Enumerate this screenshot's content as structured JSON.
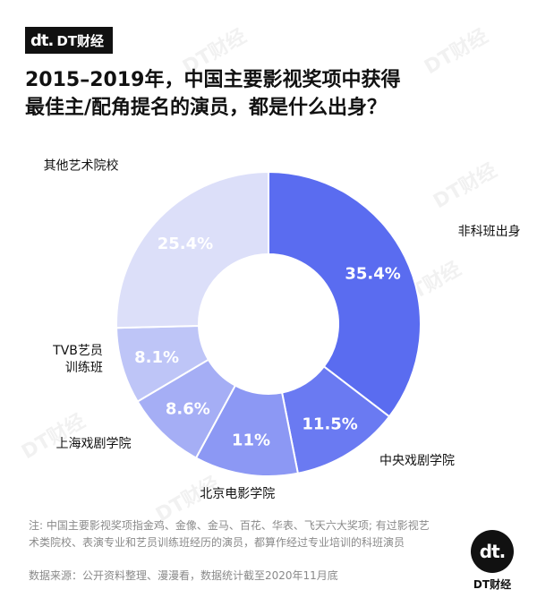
{
  "brand": {
    "mark": "dt.",
    "name": "DT财经"
  },
  "title": {
    "line1": "2015–2019年，中国主要影视奖项中获得",
    "line2": "最佳主/配角提名的演员，都是什么出身？"
  },
  "chart_data": {
    "type": "pie",
    "title": "2015–2019年，中国主要影视奖项中获得最佳主/配角提名的演员，都是什么出身？",
    "unit": "%",
    "categories": [
      "非科班出身",
      "中央戏剧学院",
      "北京电影学院",
      "上海戏剧学院",
      "TVB艺员训练班",
      "其他艺术院校"
    ],
    "values": [
      35.4,
      11.5,
      11,
      8.6,
      8.1,
      25.4
    ],
    "value_labels": [
      "35.4%",
      "11.5%",
      "11%",
      "8.6%",
      "8.1%",
      "25.4%"
    ],
    "category_label_lines": [
      [
        "非科班出身"
      ],
      [
        "中央戏剧学院"
      ],
      [
        "北京电影学院"
      ],
      [
        "上海戏剧学院"
      ],
      [
        "TVB艺员",
        "训练班"
      ],
      [
        "其他艺术院校"
      ]
    ],
    "colors": [
      "#5a6cf0",
      "#6a7af2",
      "#8c98f4",
      "#a5aef5",
      "#bec5f7",
      "#dcdff9"
    ],
    "label_colors": [
      "#ffffff",
      "#ffffff",
      "#ffffff",
      "#ffffff",
      "#ffffff",
      "#ffffff"
    ],
    "donut": true,
    "legend": "none"
  },
  "footer": {
    "note_line1": "注: 中国主要影视奖项指金鸡、金像、金马、百花、华表、飞天六大奖项; 有过影视艺",
    "note_line2": "术类院校、表演专业和艺员训练班经历的演员，都算作经过专业培训的科班演员",
    "source": "数据来源：公开资料整理、漫漫看，数据统计截至2020年11月底",
    "logo_mark": "dt.",
    "logo_text": "DT财经"
  }
}
